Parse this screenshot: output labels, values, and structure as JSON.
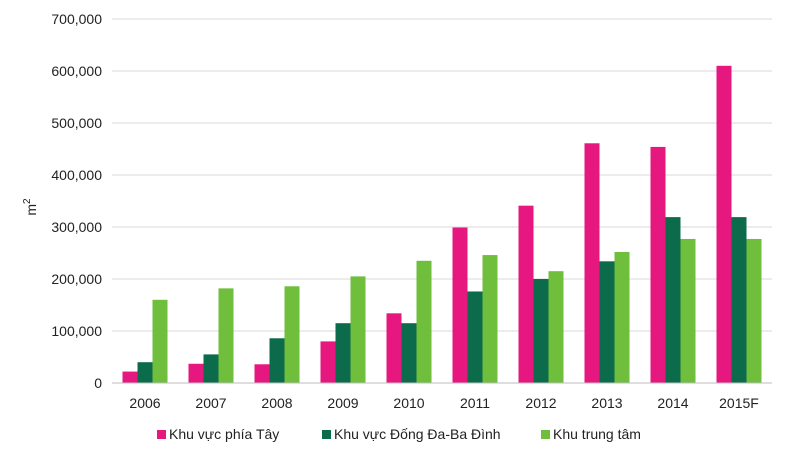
{
  "chart_data": {
    "type": "bar",
    "ylabel": "m",
    "ylabel_superscript": "2",
    "categories": [
      "2006",
      "2007",
      "2008",
      "2009",
      "2010",
      "2011",
      "2012",
      "2013",
      "2014",
      "2015F"
    ],
    "ylim": [
      0,
      700000
    ],
    "yticks": [
      0,
      100000,
      200000,
      300000,
      400000,
      500000,
      600000,
      700000
    ],
    "ytick_labels": [
      "0",
      "100,000",
      "200,000",
      "300,000",
      "400,000",
      "500,000",
      "600,000",
      "700,000"
    ],
    "grid": true,
    "legend_position": "bottom",
    "series": [
      {
        "name": "Khu vực phía Tây",
        "color": "#e6177f",
        "values": [
          22000,
          37000,
          36000,
          80000,
          134000,
          299000,
          341000,
          461000,
          454000,
          610000
        ]
      },
      {
        "name": "Khu vực Đống Đa-Ba Đình",
        "color": "#0b6b4b",
        "values": [
          40000,
          55000,
          86000,
          115000,
          115000,
          176000,
          200000,
          234000,
          319000,
          319000
        ]
      },
      {
        "name": "Khu trung tâm",
        "color": "#6fbe3c",
        "values": [
          160000,
          182000,
          186000,
          205000,
          235000,
          246000,
          215000,
          252000,
          277000,
          277000
        ]
      }
    ]
  }
}
